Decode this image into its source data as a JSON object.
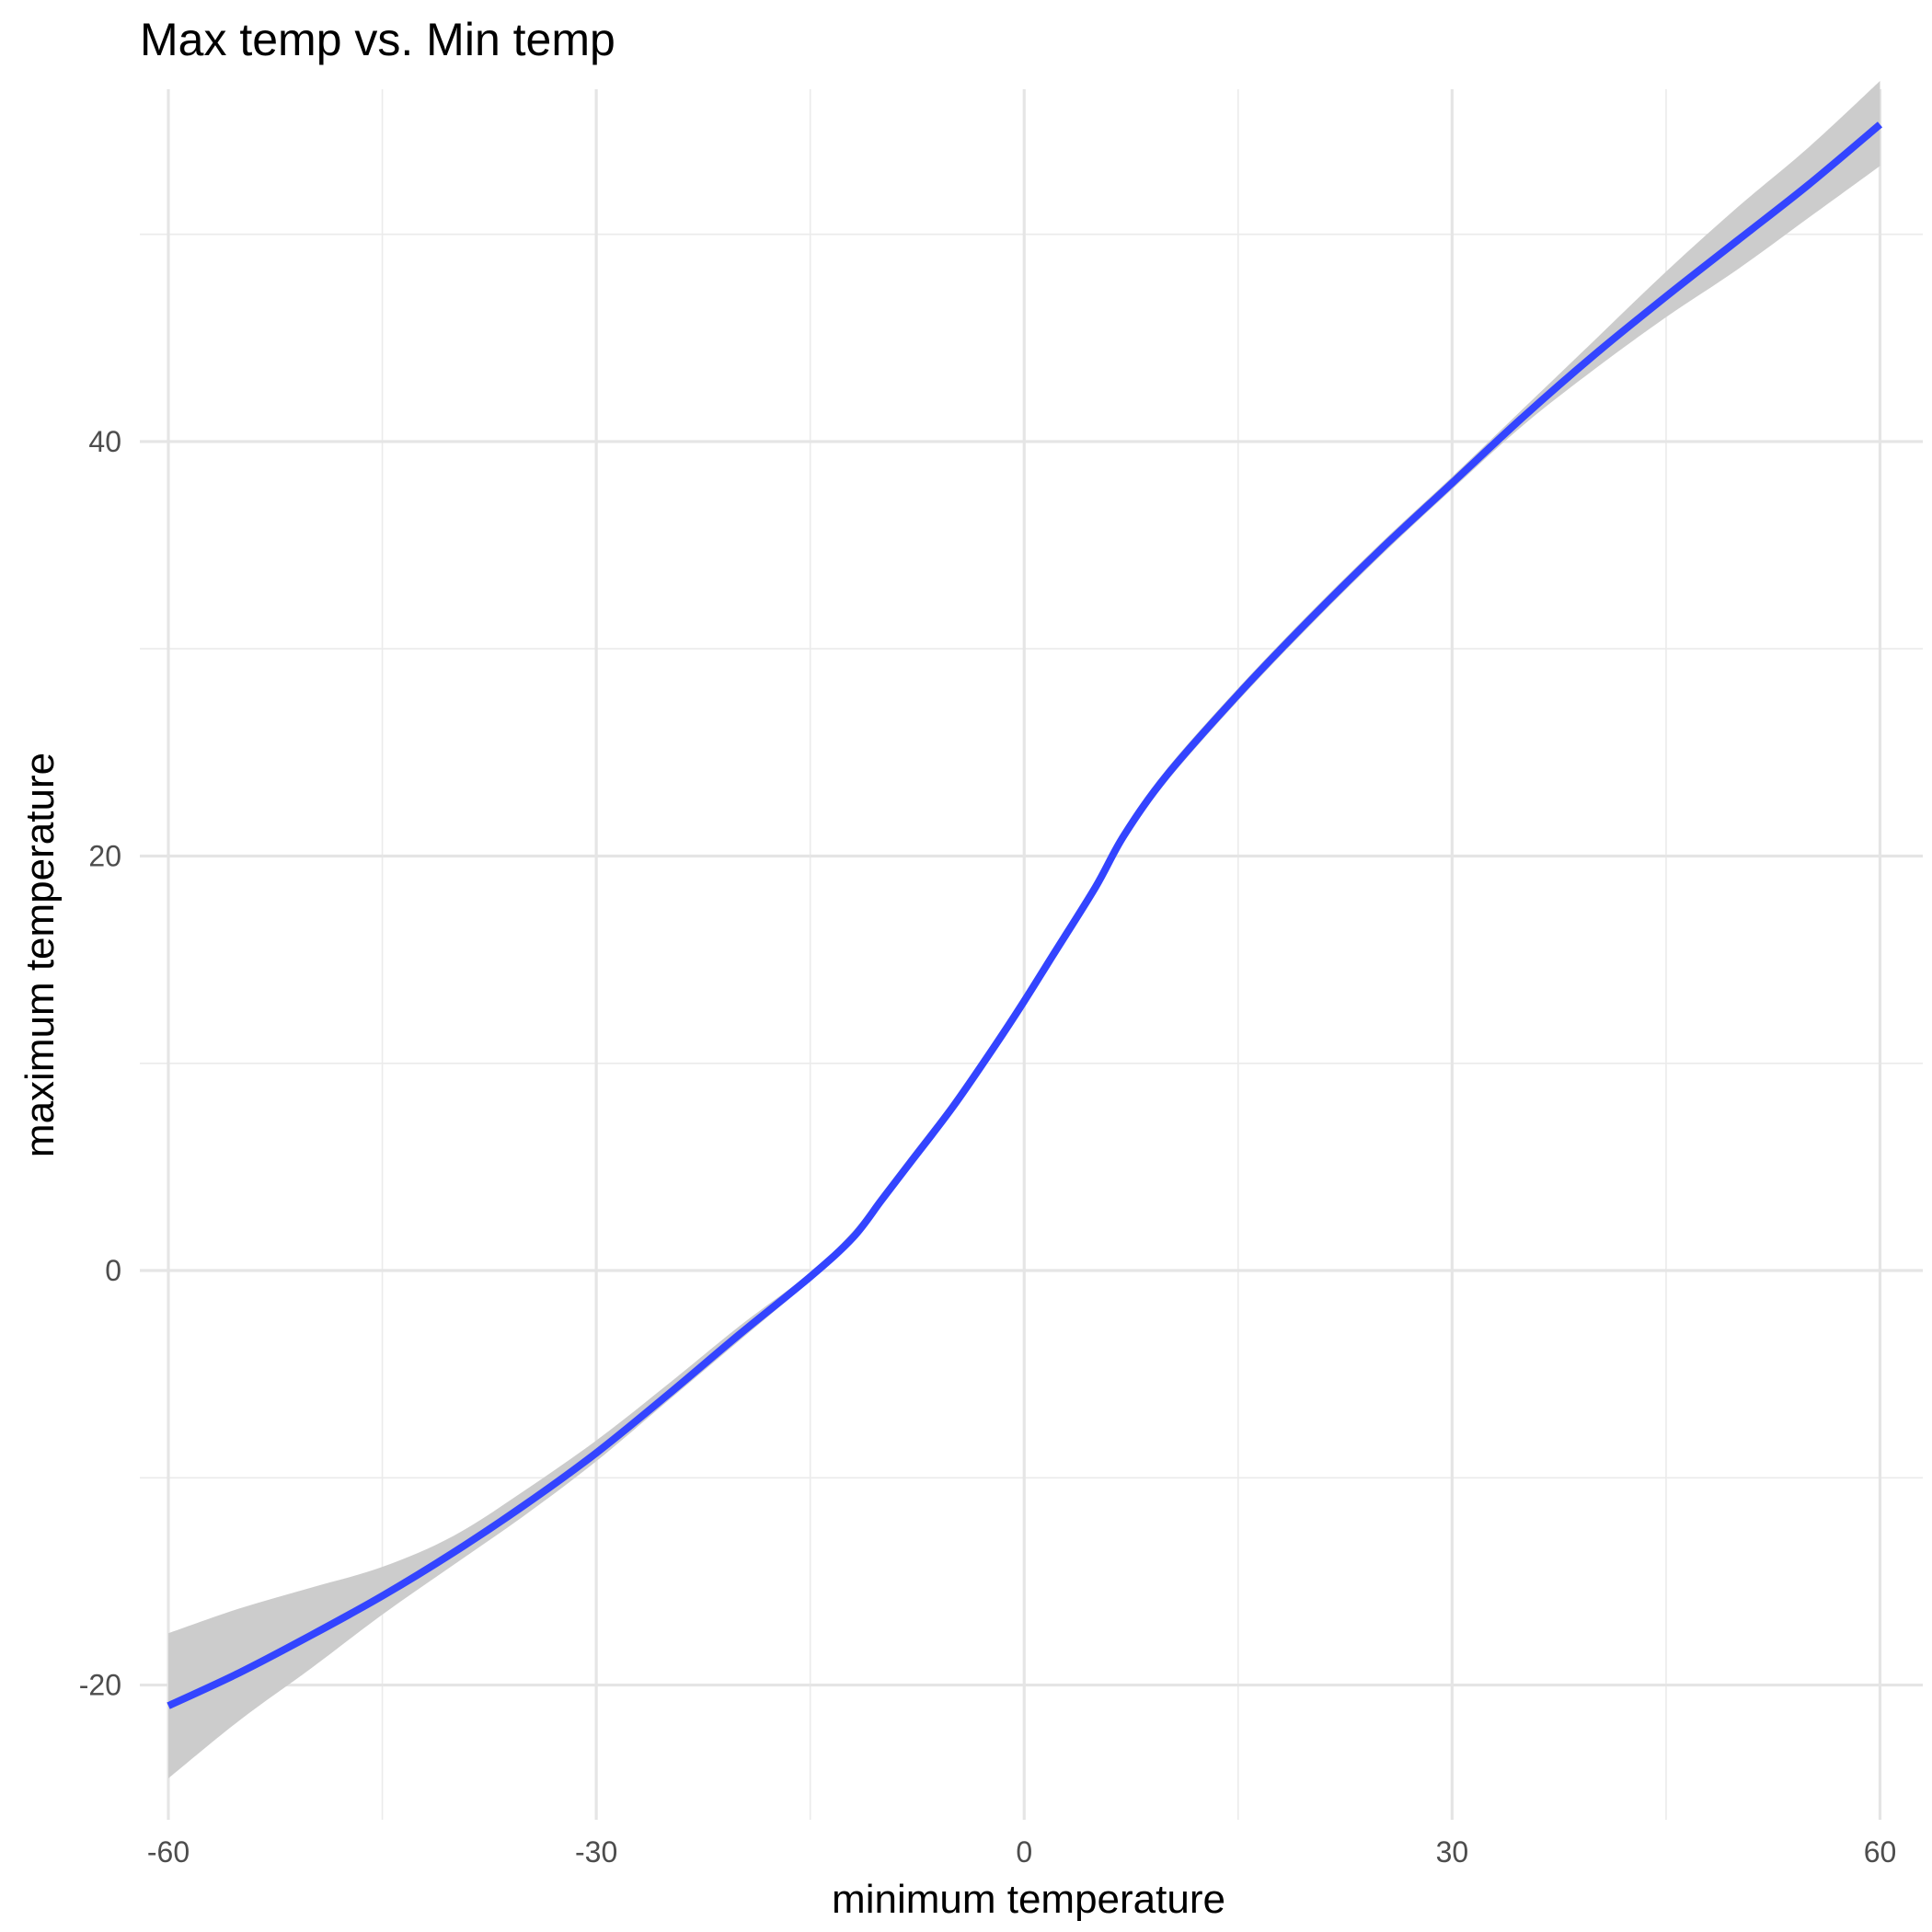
{
  "chart_data": {
    "type": "line",
    "title": "Max temp vs. Min temp",
    "xlabel": "minimum temperature",
    "ylabel": "maximum temperature",
    "xlim": [
      -62,
      63
    ],
    "ylim": [
      -26.5,
      57
    ],
    "x_ticks": [
      -60,
      -30,
      0,
      30,
      60
    ],
    "x_tick_labels": [
      "-60",
      "-30",
      "0",
      "30",
      "60"
    ],
    "y_ticks": [
      -20,
      0,
      20,
      40
    ],
    "y_tick_labels": [
      "-20",
      "0",
      "20",
      "40"
    ],
    "x_minor_ticks": [
      -45,
      -15,
      15,
      45
    ],
    "y_minor_ticks": [
      -10,
      10,
      30,
      50
    ],
    "grid": true,
    "legend": "none",
    "series": [
      {
        "line_color": "#3344ff",
        "band_color": "#cccccc",
        "x": [
          -60,
          -55,
          -50,
          -45,
          -40,
          -35,
          -30,
          -25,
          -20,
          -15,
          -12,
          -10,
          -8,
          -5,
          -2,
          0,
          2,
          5,
          7,
          10,
          15,
          20,
          25,
          30,
          35,
          40,
          45,
          50,
          55,
          60
        ],
        "y": [
          -21.0,
          -19.4,
          -17.6,
          -15.7,
          -13.6,
          -11.3,
          -8.8,
          -6.0,
          -3.1,
          -0.3,
          1.6,
          3.4,
          5.2,
          7.9,
          10.9,
          13.0,
          15.2,
          18.5,
          21.0,
          23.9,
          27.8,
          31.4,
          34.8,
          38.0,
          41.2,
          44.2,
          47.0,
          49.7,
          52.4,
          55.3
        ],
        "lower": [
          -24.5,
          -21.7,
          -19.2,
          -16.6,
          -14.2,
          -11.8,
          -9.2,
          -6.3,
          -3.4,
          -0.5,
          1.4,
          3.2,
          5.0,
          7.7,
          10.7,
          12.8,
          15.0,
          18.3,
          20.7,
          23.6,
          27.5,
          31.1,
          34.5,
          37.7,
          40.8,
          43.5,
          46.0,
          48.3,
          50.8,
          53.3
        ],
        "upper": [
          -17.5,
          -16.3,
          -15.3,
          -14.3,
          -12.8,
          -10.6,
          -8.2,
          -5.5,
          -2.7,
          -0.1,
          1.9,
          3.7,
          5.5,
          8.2,
          11.2,
          13.3,
          15.5,
          18.8,
          21.3,
          24.2,
          28.1,
          31.7,
          35.1,
          38.3,
          41.6,
          44.9,
          48.2,
          51.3,
          54.2,
          57.4
        ]
      }
    ]
  }
}
